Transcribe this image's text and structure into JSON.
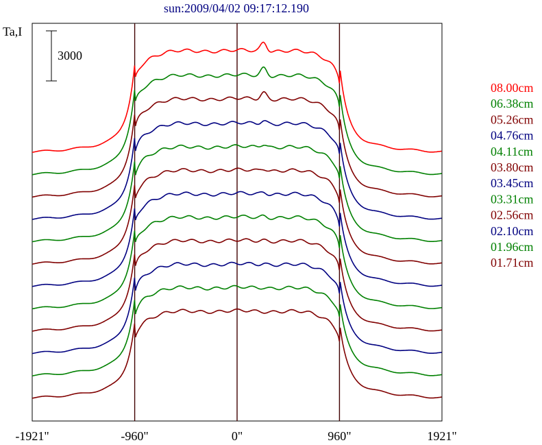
{
  "chart_data": {
    "type": "line",
    "title": "sun:2009/04/02 09:17:12.190",
    "ylabel": "Ta,I",
    "scale_bar_label": "3000",
    "x_tick_labels": [
      "-1921\"",
      "-960\"",
      "0\"",
      "960\"",
      "1921\""
    ],
    "x_ticks": [
      -1921,
      -960,
      0,
      960,
      1921
    ],
    "xlim": [
      -1921,
      1921
    ],
    "vertical_lines": [
      -960,
      0,
      960
    ],
    "grid": false,
    "legend_position": "right",
    "series": [
      {
        "name": "08.00cm",
        "color": "#ff0000",
        "base": 0,
        "disk_level": 4600,
        "limb_value": 3100,
        "peak": 400
      },
      {
        "name": "06.38cm",
        "color": "#008000",
        "base": -1000,
        "disk_level": 4500,
        "limb_value": 3000,
        "peak": 350
      },
      {
        "name": "05.26cm",
        "color": "#800000",
        "base": -2000,
        "disk_level": 4450,
        "limb_value": 2900,
        "peak": 300
      },
      {
        "name": "04.76cm",
        "color": "#000080",
        "base": -3000,
        "disk_level": 4350,
        "limb_value": 2850,
        "peak": 150
      },
      {
        "name": "04.11cm",
        "color": "#008000",
        "base": -4000,
        "disk_level": 4300,
        "limb_value": 2800,
        "peak": 150
      },
      {
        "name": "03.80cm",
        "color": "#800000",
        "base": -5000,
        "disk_level": 4250,
        "limb_value": 2750,
        "peak": 100
      },
      {
        "name": "03.45cm",
        "color": "#000080",
        "base": -6000,
        "disk_level": 4200,
        "limb_value": 2700,
        "peak": 100
      },
      {
        "name": "03.31cm",
        "color": "#008000",
        "base": -7000,
        "disk_level": 4150,
        "limb_value": 2700,
        "peak": 80
      },
      {
        "name": "02.56cm",
        "color": "#800000",
        "base": -8000,
        "disk_level": 4100,
        "limb_value": 2650,
        "peak": 50
      },
      {
        "name": "02.10cm",
        "color": "#000080",
        "base": -9000,
        "disk_level": 4050,
        "limb_value": 2600,
        "peak": 50
      },
      {
        "name": "01.96cm",
        "color": "#008000",
        "base": -10000,
        "disk_level": 4000,
        "limb_value": 2600,
        "peak": 30
      },
      {
        "name": "01.71cm",
        "color": "#800000",
        "base": -11000,
        "disk_level": 3950,
        "limb_value": 2550,
        "peak": 0
      }
    ]
  },
  "colors": {
    "axis": "#000000",
    "title": "#000080",
    "guide_line": "#400000"
  }
}
